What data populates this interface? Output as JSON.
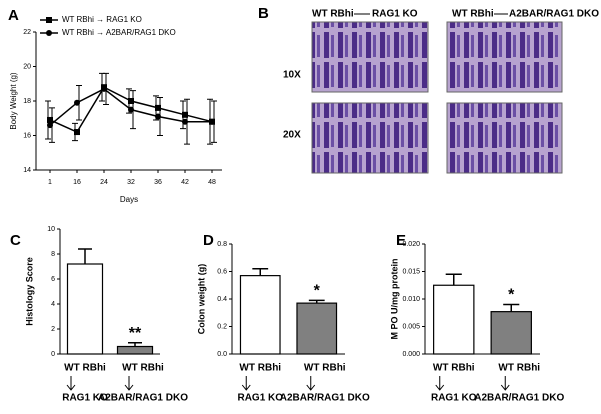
{
  "chart_data": [
    {
      "type": "line",
      "panel": "A",
      "xlabel": "Days",
      "ylabel": "Body Weight (g)",
      "categories": [
        "1",
        "16",
        "24",
        "32",
        "36",
        "42",
        "48"
      ],
      "ylim": [
        14,
        22
      ],
      "yticks": [
        14,
        16,
        18,
        20,
        22
      ],
      "series": [
        {
          "name": "WT RBhi → RAG1 KO",
          "marker": "square",
          "color": "#000000",
          "values": [
            16.9,
            16.2,
            18.8,
            18.0,
            17.6,
            17.2,
            16.8
          ],
          "errors": [
            1.1,
            0.5,
            0.8,
            0.7,
            0.7,
            0.8,
            1.3
          ]
        },
        {
          "name": "WT RBhi → A2BAR/RAG1 DKO",
          "marker": "circle",
          "color": "#000000",
          "values": [
            16.6,
            17.9,
            18.7,
            17.5,
            17.1,
            16.8,
            16.8
          ],
          "errors": [
            1.0,
            1.0,
            0.9,
            1.1,
            1.1,
            1.3,
            1.2
          ]
        }
      ]
    },
    {
      "type": "bar",
      "panel": "C",
      "ylabel": "Histology Score",
      "donor": "WT RBhi",
      "categories": [
        "RAG1 KO",
        "A2BAR/RAG1 DKO"
      ],
      "colors": [
        "#ffffff",
        "#808080"
      ],
      "values": [
        7.2,
        0.6
      ],
      "errors": [
        1.2,
        0.3
      ],
      "annotations": [
        null,
        "**"
      ],
      "ylim": [
        0,
        10
      ],
      "yticks": [
        0,
        2,
        4,
        6,
        8,
        10
      ]
    },
    {
      "type": "bar",
      "panel": "D",
      "ylabel": "Colon weight (g)",
      "donor": "WT RBhi",
      "categories": [
        "RAG1 KO",
        "A2BAR/RAG1 DKO"
      ],
      "colors": [
        "#ffffff",
        "#808080"
      ],
      "values": [
        0.57,
        0.37
      ],
      "errors": [
        0.05,
        0.02
      ],
      "annotations": [
        null,
        "*"
      ],
      "ylim": [
        0,
        0.8
      ],
      "yticks": [
        {
          "value": 0,
          "label": "0.0"
        },
        {
          "value": 0.2,
          "label": "0.2"
        },
        {
          "value": 0.4,
          "label": "0.4"
        },
        {
          "value": 0.6,
          "label": "0.6"
        },
        {
          "value": 0.8,
          "label": "0.8"
        }
      ]
    },
    {
      "type": "bar",
      "panel": "E",
      "ylabel": "M PO U/mg protein",
      "donor": "WT RBhi",
      "categories": [
        "RAG1 KO",
        "A2BAR/RAG1 DKO"
      ],
      "colors": [
        "#ffffff",
        "#808080"
      ],
      "values": [
        0.0125,
        0.0077
      ],
      "errors": [
        0.002,
        0.0013
      ],
      "annotations": [
        null,
        "*"
      ],
      "ylim": [
        0,
        0.02
      ],
      "yticks": [
        {
          "value": 0,
          "label": "0.000"
        },
        {
          "value": 0.005,
          "label": "0.005"
        },
        {
          "value": 0.01,
          "label": "0.010"
        },
        {
          "value": 0.015,
          "label": "0.015"
        },
        {
          "value": 0.02,
          "label": "0.020"
        }
      ]
    }
  ],
  "panel_b": {
    "panel": "B",
    "donor": "WT RBhi",
    "columns": [
      "RAG1 KO",
      "A2BAR/RAG1 DKO"
    ],
    "rows": [
      "10X",
      "20X"
    ]
  }
}
